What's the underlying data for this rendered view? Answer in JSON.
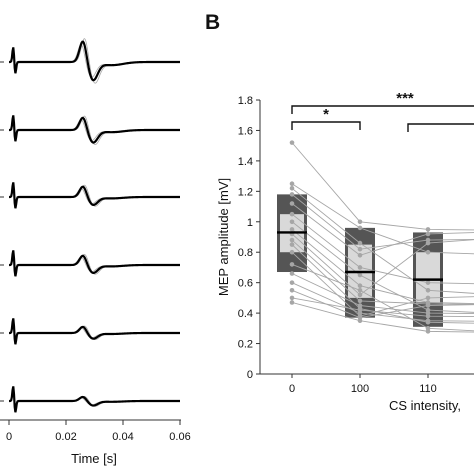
{
  "chart_data": [
    {
      "type": "line",
      "title": "",
      "xlabel": "Time [s]",
      "ylabel": "",
      "xlim": [
        0,
        0.06
      ],
      "xticks": [
        "0",
        "0.02",
        "0.04",
        "0.06"
      ],
      "grid": false,
      "traces_per_row": 3,
      "rows": [
        {
          "peak": 1.0,
          "trough": -0.8
        },
        {
          "peak": 0.6,
          "trough": -0.55
        },
        {
          "peak": 0.5,
          "trough": -0.35
        },
        {
          "peak": 0.45,
          "trough": -0.35
        },
        {
          "peak": 0.3,
          "trough": -0.25
        },
        {
          "peak": 0.2,
          "trough": -0.2
        }
      ]
    },
    {
      "type": "box",
      "panel_label": "B",
      "xlabel": "CS intensity, ",
      "ylabel": "MEP amplitude [mV]",
      "ylim": [
        0,
        1.8
      ],
      "yticks": [
        "0",
        "0.2",
        "0.4",
        "0.6",
        "0.8",
        "1",
        "1.2",
        "1.4",
        "1.6",
        "1.8"
      ],
      "categories": [
        "0",
        "100",
        "110"
      ],
      "boxes": [
        {
          "q1": 0.67,
          "q3": 1.18,
          "median": 0.93,
          "inner_lo": 0.8,
          "inner_hi": 1.05
        },
        {
          "q1": 0.37,
          "q3": 0.96,
          "median": 0.67,
          "inner_lo": 0.5,
          "inner_hi": 0.85
        },
        {
          "q1": 0.31,
          "q3": 0.93,
          "median": 0.62,
          "inner_lo": 0.47,
          "inner_hi": 0.8
        }
      ],
      "subjects": [
        [
          1.52,
          1.0,
          0.95
        ],
        [
          1.25,
          0.96,
          0.8
        ],
        [
          1.22,
          0.86,
          0.55
        ],
        [
          1.18,
          0.82,
          0.88
        ],
        [
          1.12,
          0.78,
          0.92
        ],
        [
          1.05,
          0.7,
          0.6
        ],
        [
          1.0,
          0.65,
          0.42
        ],
        [
          0.95,
          0.58,
          0.47
        ],
        [
          0.92,
          0.52,
          0.86
        ],
        [
          0.88,
          0.48,
          0.46
        ],
        [
          0.85,
          0.43,
          0.34
        ],
        [
          0.8,
          0.38,
          0.5
        ],
        [
          0.72,
          0.55,
          0.3
        ],
        [
          0.66,
          0.45,
          0.4
        ],
        [
          0.6,
          0.4,
          0.35
        ],
        [
          0.55,
          0.37,
          0.45
        ],
        [
          0.5,
          0.42,
          0.38
        ],
        [
          0.47,
          0.35,
          0.28
        ]
      ],
      "significance": [
        {
          "label": "*",
          "from": "0",
          "to": "100"
        },
        {
          "label": "***",
          "from": "0",
          "to": "right-edge"
        }
      ],
      "colors": {
        "box_outer": "#555555",
        "box_inner": "#d9d9d9",
        "median": "#000000",
        "subject": "#a6a6a6"
      }
    }
  ]
}
